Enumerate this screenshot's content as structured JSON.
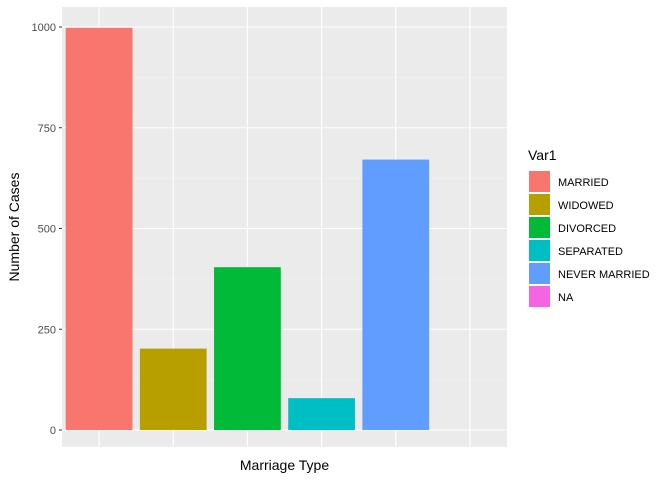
{
  "chart_data": {
    "type": "bar",
    "xlabel": "Marriage Type",
    "ylabel": "Number of Cases",
    "ylim": [
      0,
      1050
    ],
    "yticks": [
      0,
      250,
      500,
      750,
      1000
    ],
    "grid": true,
    "legend_title": "Var1",
    "legend_position": "right",
    "categories": [
      "MARRIED",
      "WIDOWED",
      "DIVORCED",
      "SEPARATED",
      "NEVER MARRIED",
      "NA"
    ],
    "values": [
      998,
      202,
      404,
      79,
      671,
      0
    ],
    "colors": [
      "#F8766D",
      "#B79F00",
      "#00BA38",
      "#00BFC4",
      "#619CFF",
      "#F564E3"
    ]
  },
  "theme": {
    "panel_background": "#EBEBEB",
    "grid_major": "#FFFFFF",
    "grid_minor": "#F3F3F3"
  }
}
